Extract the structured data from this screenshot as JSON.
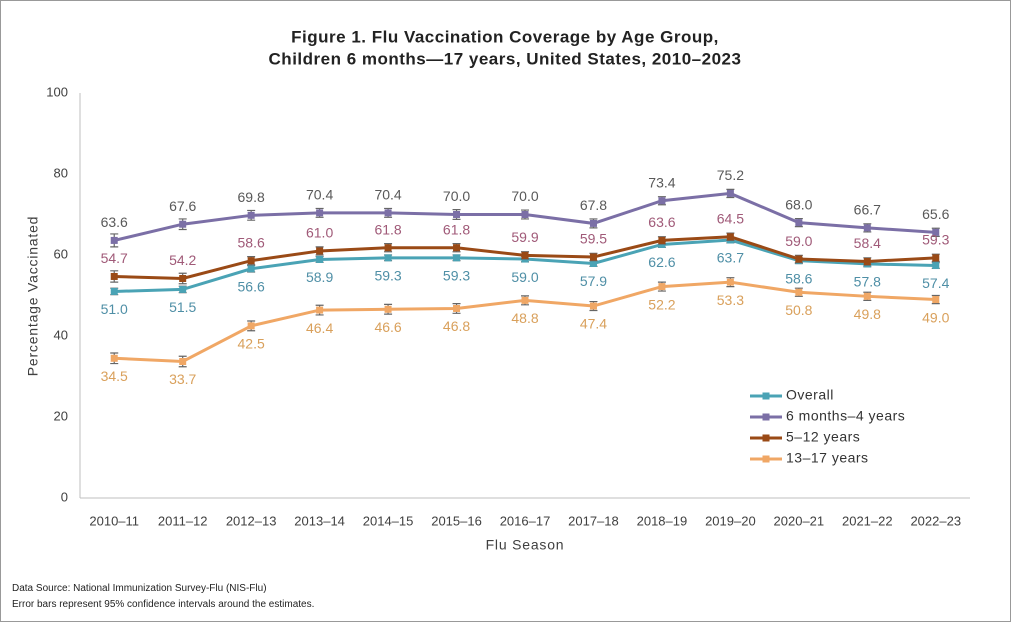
{
  "chart_data": {
    "type": "line",
    "title": "Figure 1. Flu Vaccination Coverage by Age Group,",
    "subtitle": "Children 6 months—17 years, United States, 2010–2023",
    "x_label": "Flu Season",
    "y_label": "Percentage Vaccinated",
    "categories": [
      "2010–11",
      "2011–12",
      "2012–13",
      "2013–14",
      "2014–15",
      "2015–16",
      "2016–17",
      "2017–18",
      "2018–19",
      "2019–20",
      "2020–21",
      "2021–22",
      "2022–23"
    ],
    "ylim": [
      0,
      100
    ],
    "yticks": [
      0,
      20,
      40,
      60,
      80,
      100
    ],
    "grid": false,
    "legend": "lower right",
    "series": [
      {
        "name": "Overall",
        "color": "#4aa3b5",
        "label_color": "#4f8fa6",
        "label_position": "below",
        "values": [
          51.0,
          51.5,
          56.6,
          58.9,
          59.3,
          59.3,
          59.0,
          57.9,
          62.6,
          63.7,
          58.6,
          57.8,
          57.4
        ],
        "value_labels": [
          "51.0",
          "51.5",
          "56.6",
          "58.9",
          "59.3",
          "59.3",
          "59.0",
          "57.9",
          "62.6",
          "63.7",
          "58.6",
          "57.8",
          "57.4"
        ],
        "errors": [
          0.8,
          0.8,
          0.8,
          0.7,
          0.7,
          0.7,
          0.7,
          0.7,
          0.7,
          0.7,
          0.7,
          0.7,
          0.7
        ]
      },
      {
        "name": "6 months–4 years",
        "color": "#7b6fa6",
        "label_color": "#595959",
        "label_position": "above",
        "values": [
          63.6,
          67.6,
          69.8,
          70.4,
          70.4,
          70.0,
          70.0,
          67.8,
          73.4,
          75.2,
          68.0,
          66.7,
          65.6
        ],
        "value_labels": [
          "63.6",
          "67.6",
          "69.8",
          "70.4",
          "70.4",
          "70.0",
          "70.0",
          "67.8",
          "73.4",
          "75.2",
          "68.0",
          "66.7",
          "65.6"
        ],
        "errors": [
          1.6,
          1.3,
          1.2,
          1.1,
          1.1,
          1.2,
          1.1,
          1.1,
          1.0,
          1.0,
          1.0,
          1.0,
          1.0
        ]
      },
      {
        "name": "5–12 years",
        "color": "#9a4a16",
        "label_color": "#a05a78",
        "label_position": "above",
        "values": [
          54.7,
          54.2,
          58.6,
          61.0,
          61.8,
          61.8,
          59.9,
          59.5,
          63.6,
          64.5,
          59.0,
          58.4,
          59.3
        ],
        "value_labels": [
          "54.7",
          "54.2",
          "58.6",
          "61.0",
          "61.8",
          "61.8",
          "59.9",
          "59.5",
          "63.6",
          "64.5",
          "59.0",
          "58.4",
          "59.3"
        ],
        "errors": [
          1.4,
          1.3,
          1.0,
          1.0,
          1.0,
          1.0,
          0.9,
          0.9,
          0.9,
          0.9,
          0.9,
          0.9,
          0.9
        ]
      },
      {
        "name": "13–17 years",
        "color": "#f0a765",
        "label_color": "#d9a05b",
        "label_position": "below",
        "values": [
          34.5,
          33.7,
          42.5,
          46.4,
          46.6,
          46.8,
          48.8,
          47.4,
          52.2,
          53.3,
          50.8,
          49.8,
          49.0
        ],
        "value_labels": [
          "34.5",
          "33.7",
          "42.5",
          "46.4",
          "46.6",
          "46.8",
          "48.8",
          "47.4",
          "52.2",
          "53.3",
          "50.8",
          "49.8",
          "49.0"
        ],
        "errors": [
          1.3,
          1.3,
          1.2,
          1.2,
          1.2,
          1.2,
          1.1,
          1.1,
          1.1,
          1.1,
          1.0,
          1.0,
          1.0
        ]
      }
    ],
    "notes": [
      "Data Source: National Immunization Survey-Flu (NIS-Flu)",
      "Error bars represent 95% confidence intervals around the estimates."
    ]
  }
}
